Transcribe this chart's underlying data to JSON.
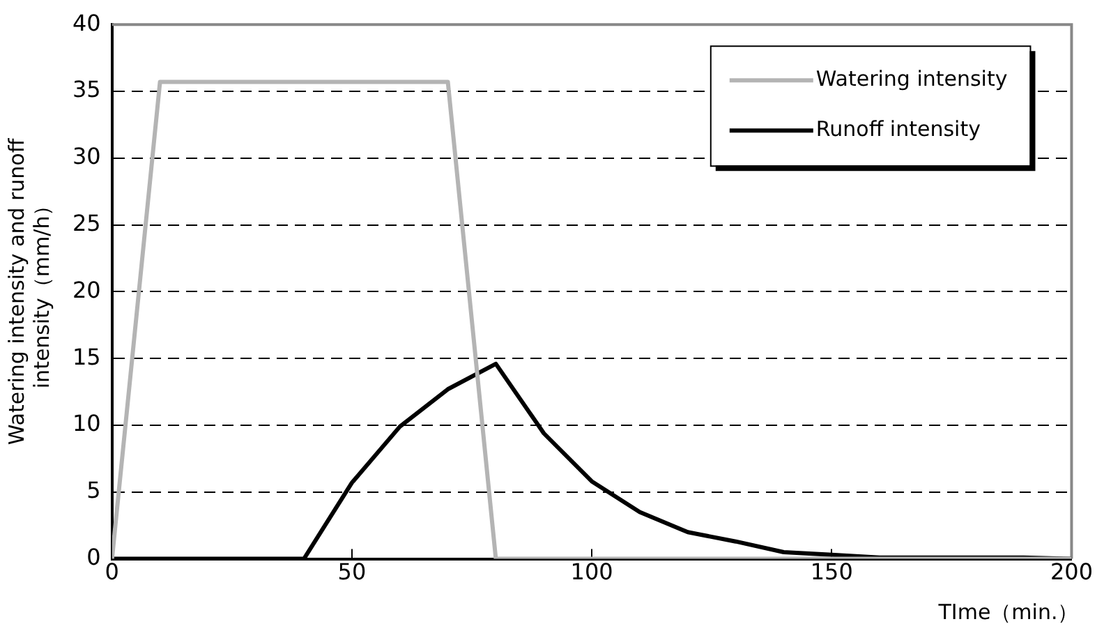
{
  "chart_data": {
    "type": "line",
    "xlabel": "TIme（min.）",
    "ylabel": "Watering intensity and runoff intensity（mm/h）",
    "xlim": [
      0,
      200
    ],
    "xticks": [
      0,
      50,
      100,
      150,
      200
    ],
    "ylim": [
      0,
      40
    ],
    "yticks": [
      0,
      5,
      10,
      15,
      20,
      25,
      30,
      35,
      40
    ],
    "grid": "y",
    "legend": "top right",
    "marker": "none",
    "series": [
      {
        "name": "Watering intensity",
        "color": "#b4b4b4",
        "x": [
          0,
          10,
          70,
          80,
          200
        ],
        "values": [
          0,
          35.7,
          35.7,
          0,
          0
        ]
      },
      {
        "name": "Runoff intensity",
        "color": "#000000",
        "x": [
          0,
          40,
          50,
          60,
          70,
          80,
          90,
          100,
          110,
          120,
          130,
          140,
          150,
          160,
          170,
          180,
          190,
          200
        ],
        "values": [
          0,
          0,
          5.7,
          9.9,
          12.7,
          14.6,
          9.4,
          5.8,
          3.5,
          2.0,
          1.3,
          0.5,
          0.3,
          0.1,
          0.1,
          0.1,
          0.1,
          0
        ]
      }
    ]
  }
}
